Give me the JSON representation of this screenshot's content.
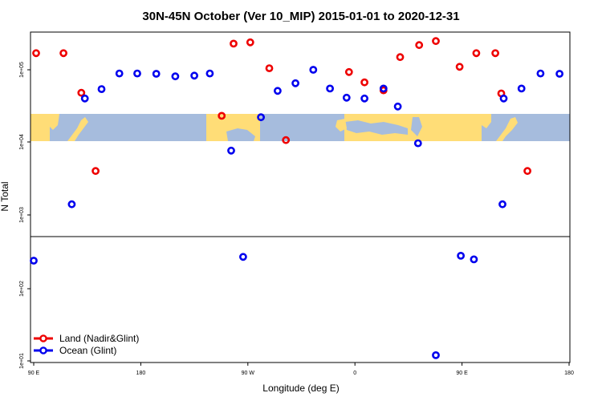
{
  "chart_data": {
    "type": "scatter",
    "title": "30N-45N October (Ver 10_MIP)   2015-01-01 to 2020-12-31",
    "xlabel": "Longitude (deg E)",
    "ylabel": "N Total",
    "y_scale": "log",
    "x_ticks": [
      "90 E",
      "180",
      "90 W",
      "0",
      "90 E",
      "180"
    ],
    "y_ticks": [
      "1e+01",
      "1e+02",
      "1e+03",
      "1e+04",
      "1e+05"
    ],
    "legend_position": "bottom-left",
    "background": "world map band between 1e+04 and about 2.5e+04",
    "series": [
      {
        "name": "Land (Nadir&Glint)",
        "color": "#ee0000",
        "marker": "open-circle",
        "points": [
          {
            "x": 92,
            "y": 170000
          },
          {
            "x": 115,
            "y": 170000
          },
          {
            "x": 130,
            "y": 48000
          },
          {
            "x": 142,
            "y": 4000
          },
          {
            "x": 248,
            "y": 23000
          },
          {
            "x": 258,
            "y": 230000
          },
          {
            "x": 272,
            "y": 240000
          },
          {
            "x": 288,
            "y": 105000
          },
          {
            "x": 302,
            "y": 10600
          },
          {
            "x": 355,
            "y": 93000
          },
          {
            "x": 368,
            "y": 67000
          },
          {
            "x": 384,
            "y": 52000
          },
          {
            "x": 398,
            "y": 150000
          },
          {
            "x": 414,
            "y": 220000
          },
          {
            "x": 428,
            "y": 250000
          },
          {
            "x": 448,
            "y": 110000
          },
          {
            "x": 462,
            "y": 170000
          },
          {
            "x": 478,
            "y": 170000
          },
          {
            "x": 483,
            "y": 47000
          },
          {
            "x": 505,
            "y": 4000
          }
        ]
      },
      {
        "name": "Ocean (Glint)",
        "color": "#0000ee",
        "marker": "open-circle",
        "points": [
          {
            "x": 90,
            "y": 240
          },
          {
            "x": 122,
            "y": 1400
          },
          {
            "x": 133,
            "y": 40000
          },
          {
            "x": 147,
            "y": 54000
          },
          {
            "x": 162,
            "y": 89000
          },
          {
            "x": 177,
            "y": 89000
          },
          {
            "x": 193,
            "y": 88000
          },
          {
            "x": 209,
            "y": 81000
          },
          {
            "x": 225,
            "y": 83000
          },
          {
            "x": 238,
            "y": 89000
          },
          {
            "x": 256,
            "y": 7600
          },
          {
            "x": 266,
            "y": 270
          },
          {
            "x": 281,
            "y": 22000
          },
          {
            "x": 295,
            "y": 51000
          },
          {
            "x": 310,
            "y": 65000
          },
          {
            "x": 325,
            "y": 100000
          },
          {
            "x": 339,
            "y": 55000
          },
          {
            "x": 353,
            "y": 41000
          },
          {
            "x": 368,
            "y": 40000
          },
          {
            "x": 384,
            "y": 55000
          },
          {
            "x": 396,
            "y": 31000
          },
          {
            "x": 413,
            "y": 9600
          },
          {
            "x": 428,
            "y": 12
          },
          {
            "x": 449,
            "y": 280
          },
          {
            "x": 460,
            "y": 250
          },
          {
            "x": 484,
            "y": 1400
          },
          {
            "x": 485,
            "y": 40000
          },
          {
            "x": 500,
            "y": 55000
          },
          {
            "x": 516,
            "y": 89000
          },
          {
            "x": 532,
            "y": 88000
          }
        ]
      }
    ]
  }
}
